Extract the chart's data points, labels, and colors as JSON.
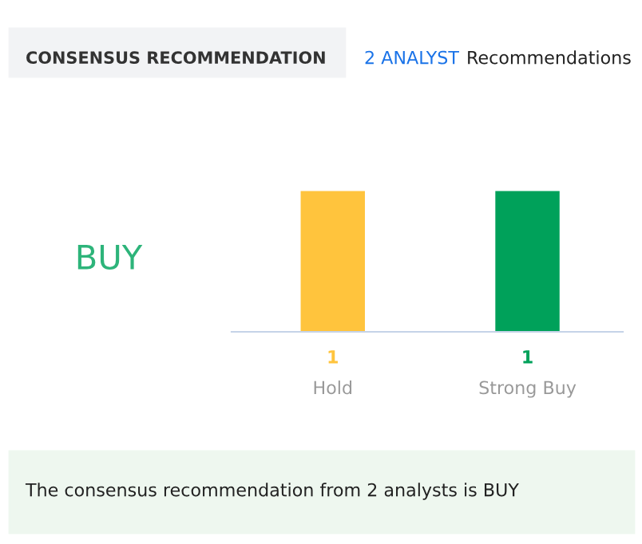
{
  "chart_data": {
    "type": "bar",
    "title": "CONSENSUS RECOMMENDATION",
    "subtitle": "2 ANALYST Recommendations",
    "categories": [
      "Hold",
      "Strong Buy"
    ],
    "values": [
      1,
      1
    ],
    "colors": [
      "#ffc43d",
      "#00a15a"
    ],
    "data_labels": true,
    "grid": false,
    "legend": false,
    "annotations": [
      "BUY",
      "The consensus recommendation from 2 analysts is BUY"
    ]
  }
}
